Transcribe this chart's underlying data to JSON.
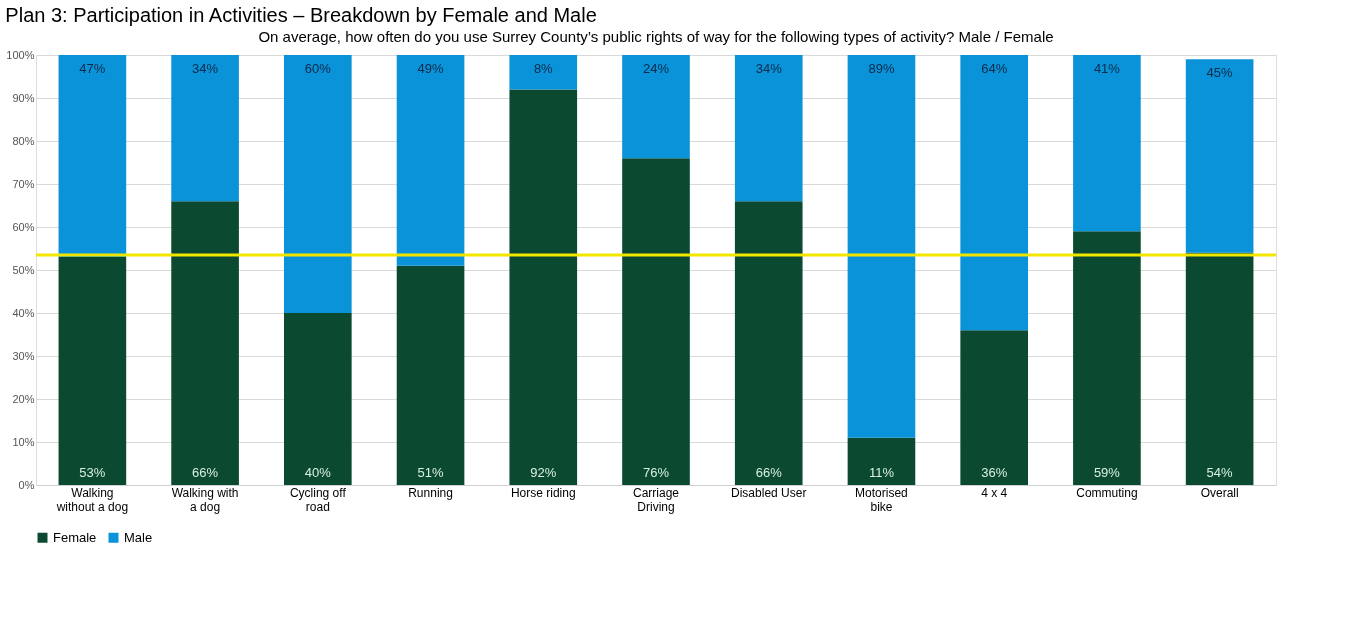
{
  "chart_data": {
    "type": "bar",
    "stacked": true,
    "title": "Plan 3: Participation in Activities – Breakdown by Female and Male",
    "subtitle": "On average, how often do you use Surrey County’s public rights of way for the following types of activity? Male / Female",
    "categories": [
      "Walking without a dog",
      "Walking with a dog",
      "Cycling off road",
      "Running",
      "Horse riding",
      "Carriage Driving",
      "Disabled User",
      "Motorised bike",
      "4 x 4",
      "Commuting",
      "Overall"
    ],
    "series": [
      {
        "name": "Female",
        "color": "#0b4a30",
        "values": [
          53,
          66,
          40,
          51,
          92,
          76,
          66,
          11,
          36,
          59,
          54
        ],
        "value_labels": [
          "53%",
          "66%",
          "40%",
          "51%",
          "92%",
          "76%",
          "66%",
          "11%",
          "36%",
          "59%",
          "54%"
        ]
      },
      {
        "name": "Male",
        "color": "#0a93d8",
        "values": [
          47,
          34,
          60,
          49,
          8,
          24,
          34,
          89,
          64,
          41,
          45
        ],
        "value_labels": [
          "47%",
          "34%",
          "60%",
          "49%",
          "8%",
          "24%",
          "34%",
          "89%",
          "64%",
          "41%",
          "45%"
        ]
      }
    ],
    "ylim": [
      0,
      100
    ],
    "yticks": [
      {
        "value": 0,
        "label": "0%"
      },
      {
        "value": 10,
        "label": "10%"
      },
      {
        "value": 20,
        "label": "20%"
      },
      {
        "value": 30,
        "label": "30%"
      },
      {
        "value": 40,
        "label": "40%"
      },
      {
        "value": 50,
        "label": "50%"
      },
      {
        "value": 60,
        "label": "60%"
      },
      {
        "value": 70,
        "label": "70%"
      },
      {
        "value": 80,
        "label": "80%"
      },
      {
        "value": 90,
        "label": "90%"
      },
      {
        "value": 100,
        "label": "100%"
      }
    ],
    "ref_lines": [
      {
        "axis": "y",
        "value": 53.5,
        "color": "#f2e600"
      }
    ],
    "grid": "y",
    "legend": "bottom"
  }
}
